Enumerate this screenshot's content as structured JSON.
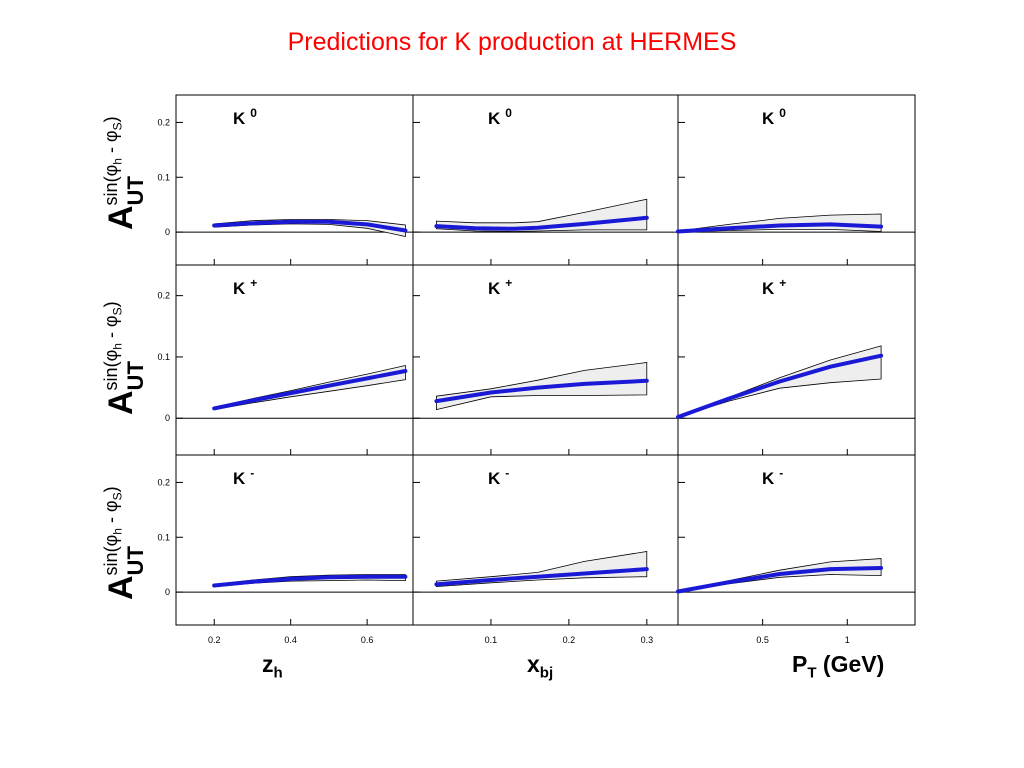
{
  "title": "Predictions for K production at HERMES",
  "colors": {
    "title": "#ff0000",
    "central": "#1a1ad6",
    "band_fill": "#eeeeee",
    "band_edge": "#000000"
  },
  "y_axis_label": {
    "main": "A",
    "main_sub": "UT",
    "sup_prefix": "sin(",
    "phi": "φ",
    "h": "h",
    "minus": " - ",
    "s": "S",
    "sup_suffix": ")"
  },
  "chart_data": {
    "type": "line",
    "title": "Predictions for K production at HERMES",
    "grid": false,
    "legend": "none",
    "rows": [
      "K0",
      "K+",
      "K-"
    ],
    "row_labels": [
      {
        "base": "K",
        "sup": "0"
      },
      {
        "base": "K",
        "sup": "+"
      },
      {
        "base": "K",
        "sup": "-"
      }
    ],
    "ylim": [
      -0.06,
      0.25
    ],
    "yticks": [
      "0",
      "0.1",
      "0.2"
    ],
    "yticks_values": [
      0,
      0.1,
      0.2
    ],
    "columns": [
      {
        "xlabel": "z",
        "xlabel_sub": "h",
        "xlabel_suffix": "",
        "xlim": [
          0.1,
          0.72
        ],
        "xticks": [
          "0.2",
          "0.4",
          "0.6"
        ],
        "xticks_values": [
          0.2,
          0.4,
          0.6
        ]
      },
      {
        "xlabel": "x",
        "xlabel_sub": "bj",
        "xlabel_suffix": "",
        "xlim": [
          0.0,
          0.34
        ],
        "xticks": [
          "0.1",
          "0.2",
          "0.3"
        ],
        "xticks_values": [
          0.1,
          0.2,
          0.3
        ]
      },
      {
        "xlabel": "P",
        "xlabel_sub": "T",
        "xlabel_suffix": " (GeV)",
        "xlim": [
          0.0,
          1.4
        ],
        "xticks": [
          "0.5",
          "1"
        ],
        "xticks_values": [
          0.5,
          1.0
        ]
      }
    ],
    "panels": [
      [
        {
          "row": "K0",
          "col": "z_h",
          "x": [
            0.2,
            0.3,
            0.4,
            0.5,
            0.6,
            0.7
          ],
          "central": [
            0.012,
            0.016,
            0.019,
            0.019,
            0.014,
            0.003
          ],
          "upper": [
            0.015,
            0.021,
            0.023,
            0.023,
            0.021,
            0.013
          ],
          "lower": [
            0.009,
            0.013,
            0.015,
            0.014,
            0.007,
            -0.008
          ]
        },
        {
          "row": "K0",
          "col": "x_bj",
          "x": [
            0.03,
            0.08,
            0.13,
            0.16,
            0.22,
            0.3
          ],
          "central": [
            0.011,
            0.007,
            0.006,
            0.008,
            0.015,
            0.026
          ],
          "upper": [
            0.02,
            0.017,
            0.017,
            0.019,
            0.036,
            0.06
          ],
          "lower": [
            0.006,
            0.002,
            0.001,
            0.002,
            0.004,
            0.004
          ]
        },
        {
          "row": "K0",
          "col": "P_T",
          "x": [
            0.0,
            0.3,
            0.6,
            0.9,
            1.2
          ],
          "central": [
            0.001,
            0.007,
            0.012,
            0.014,
            0.01
          ],
          "upper": [
            0.002,
            0.014,
            0.025,
            0.031,
            0.033
          ],
          "lower": [
            0.0,
            0.003,
            0.005,
            0.005,
            0.001
          ]
        }
      ],
      [
        {
          "row": "K+",
          "col": "z_h",
          "x": [
            0.2,
            0.3,
            0.4,
            0.5,
            0.6,
            0.7
          ],
          "central": [
            0.016,
            0.029,
            0.041,
            0.053,
            0.065,
            0.077
          ],
          "upper": [
            0.018,
            0.032,
            0.045,
            0.059,
            0.072,
            0.086
          ],
          "lower": [
            0.014,
            0.025,
            0.035,
            0.044,
            0.053,
            0.063
          ]
        },
        {
          "row": "K+",
          "col": "x_bj",
          "x": [
            0.03,
            0.1,
            0.16,
            0.22,
            0.3
          ],
          "central": [
            0.028,
            0.042,
            0.05,
            0.056,
            0.061
          ],
          "upper": [
            0.036,
            0.048,
            0.062,
            0.078,
            0.091
          ],
          "lower": [
            0.014,
            0.035,
            0.037,
            0.037,
            0.038
          ]
        },
        {
          "row": "K+",
          "col": "P_T",
          "x": [
            0.0,
            0.3,
            0.6,
            0.9,
            1.2
          ],
          "central": [
            0.002,
            0.032,
            0.06,
            0.084,
            0.102
          ],
          "upper": [
            0.002,
            0.034,
            0.066,
            0.095,
            0.118
          ],
          "lower": [
            0.002,
            0.028,
            0.049,
            0.058,
            0.064
          ]
        }
      ],
      [
        {
          "row": "K-",
          "col": "z_h",
          "x": [
            0.2,
            0.3,
            0.4,
            0.5,
            0.6,
            0.7
          ],
          "central": [
            0.012,
            0.019,
            0.024,
            0.027,
            0.028,
            0.028
          ],
          "upper": [
            0.014,
            0.022,
            0.028,
            0.031,
            0.032,
            0.032
          ],
          "lower": [
            0.01,
            0.016,
            0.02,
            0.021,
            0.022,
            0.021
          ]
        },
        {
          "row": "K-",
          "col": "x_bj",
          "x": [
            0.03,
            0.1,
            0.16,
            0.22,
            0.3
          ],
          "central": [
            0.014,
            0.022,
            0.028,
            0.034,
            0.042
          ],
          "upper": [
            0.02,
            0.028,
            0.036,
            0.056,
            0.074
          ],
          "lower": [
            0.01,
            0.017,
            0.022,
            0.026,
            0.028
          ]
        },
        {
          "row": "K-",
          "col": "P_T",
          "x": [
            0.0,
            0.3,
            0.6,
            0.9,
            1.2
          ],
          "central": [
            0.001,
            0.018,
            0.033,
            0.042,
            0.044
          ],
          "upper": [
            0.002,
            0.021,
            0.04,
            0.055,
            0.061
          ],
          "lower": [
            0.0,
            0.015,
            0.027,
            0.032,
            0.03
          ]
        }
      ]
    ]
  }
}
